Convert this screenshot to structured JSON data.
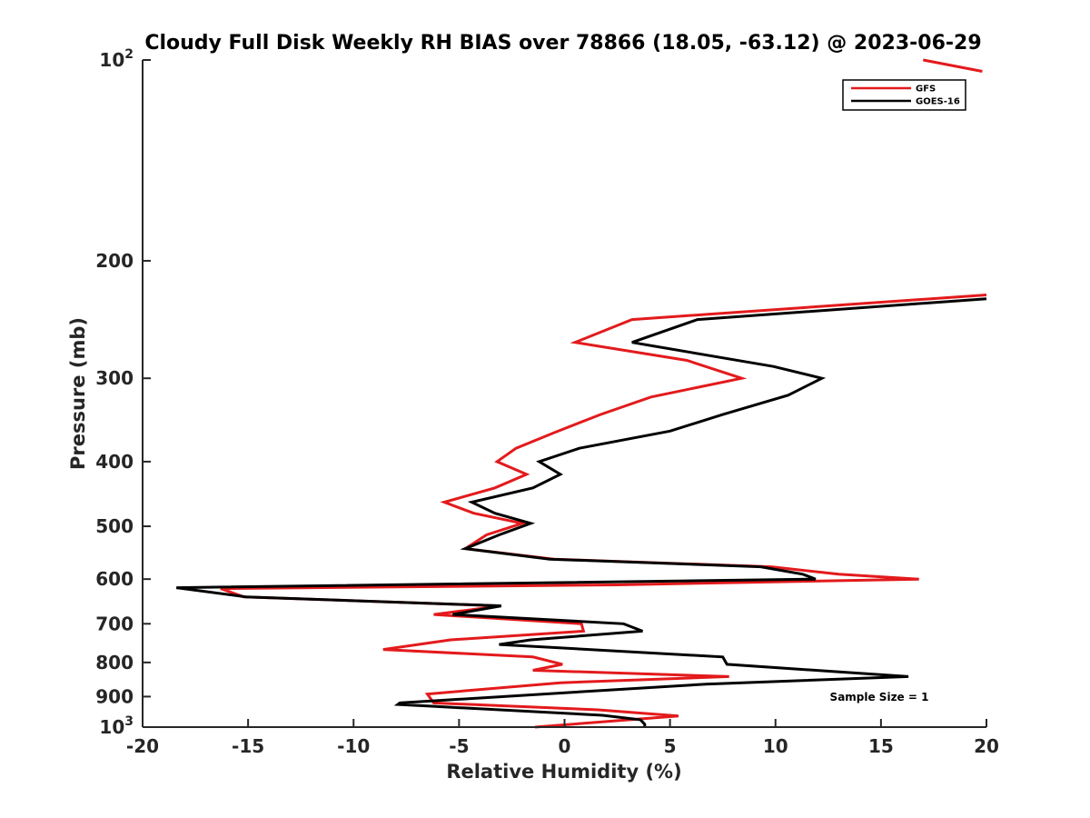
{
  "chart_data": {
    "type": "line",
    "title": "Cloudy Full Disk Weekly RH BIAS over 78866 (18.05, -63.12) @ 2023-06-29",
    "xlabel": "Relative Humidity (%)",
    "ylabel": "Pressure (mb)",
    "xlim": [
      -20,
      20
    ],
    "ylim": [
      100,
      1000
    ],
    "yscale": "log",
    "y_reversed": true,
    "x_ticks": [
      -20,
      -15,
      -10,
      -5,
      0,
      5,
      10,
      15,
      20
    ],
    "x_tick_labels": [
      "-20",
      "-15",
      "-10",
      "-5",
      "0",
      "5",
      "10",
      "15",
      "20"
    ],
    "y_ticks": [
      100,
      200,
      300,
      400,
      500,
      600,
      700,
      800,
      900,
      1000
    ],
    "y_tick_labels": [
      "10^2",
      "200",
      "300",
      "400",
      "500",
      "600",
      "700",
      "800",
      "900",
      "10^3"
    ],
    "legend_position": "top-right",
    "annotation": "Sample Size = 1",
    "series": [
      {
        "name": "GFS",
        "color": "#e31a1c",
        "points": [
          [
            17,
            100
          ],
          [
            19.8,
            104
          ],
          null,
          [
            20,
            225
          ],
          [
            3.2,
            245
          ],
          [
            0.5,
            265
          ],
          [
            5.8,
            282
          ],
          [
            8.4,
            300
          ],
          [
            4.1,
            320
          ],
          [
            1.7,
            340
          ],
          [
            -0.5,
            362
          ],
          [
            -2.3,
            382
          ],
          [
            -3.2,
            400
          ],
          [
            -1.8,
            418
          ],
          [
            -3.3,
            438
          ],
          [
            -5.7,
            460
          ],
          [
            -4.3,
            478
          ],
          [
            -2.0,
            495
          ],
          [
            -3.7,
            515
          ],
          [
            -4.7,
            540
          ],
          [
            -0.5,
            560
          ],
          [
            9.8,
            575
          ],
          [
            13,
            590
          ],
          [
            16.8,
            600
          ],
          [
            2.5,
            612
          ],
          [
            -16.3,
            620
          ],
          [
            -15.2,
            638
          ],
          [
            -3,
            658
          ],
          [
            -6.2,
            678
          ],
          [
            0.8,
            700
          ],
          [
            0.9,
            718
          ],
          [
            -5.4,
            740
          ],
          [
            -8.6,
            765
          ],
          [
            -1.5,
            785
          ],
          [
            -0.1,
            805
          ],
          [
            -1.5,
            822
          ],
          [
            7.8,
            840
          ],
          [
            -0.2,
            858
          ],
          [
            -6.5,
            892
          ],
          [
            -6.2,
            920
          ],
          [
            1.6,
            942
          ],
          [
            5.4,
            962
          ],
          [
            -1.4,
            1000
          ]
        ]
      },
      {
        "name": "GOES-16",
        "color": "#000000",
        "points": [
          [
            20,
            228
          ],
          [
            6.3,
            245
          ],
          [
            3.2,
            265
          ],
          [
            9.9,
            288
          ],
          [
            12.2,
            300
          ],
          [
            10.6,
            318
          ],
          [
            7.5,
            340
          ],
          [
            5,
            360
          ],
          [
            0.7,
            382
          ],
          [
            -1.2,
            400
          ],
          [
            -0.2,
            418
          ],
          [
            -1.5,
            438
          ],
          [
            -4.4,
            460
          ],
          [
            -3.3,
            478
          ],
          [
            -1.6,
            495
          ],
          [
            -3.1,
            515
          ],
          [
            -4.7,
            540
          ],
          [
            -0.7,
            560
          ],
          [
            9.3,
            575
          ],
          [
            11.3,
            590
          ],
          [
            11.9,
            600
          ],
          [
            -18.4,
            618
          ],
          [
            -15.1,
            638
          ],
          [
            -3,
            658
          ],
          [
            -5.3,
            678
          ],
          [
            2.8,
            700
          ],
          [
            3.7,
            718
          ],
          [
            -1.6,
            740
          ],
          [
            -3.1,
            752
          ],
          [
            7.5,
            785
          ],
          [
            7.7,
            805
          ],
          [
            16.3,
            840
          ],
          [
            6.7,
            862
          ],
          [
            -7.8,
            920
          ],
          [
            -7.9,
            925
          ],
          [
            -6.4,
            930
          ],
          [
            1.8,
            960
          ],
          [
            3.6,
            975
          ],
          [
            3.8,
            990
          ],
          [
            3.8,
            1000
          ]
        ]
      }
    ]
  }
}
